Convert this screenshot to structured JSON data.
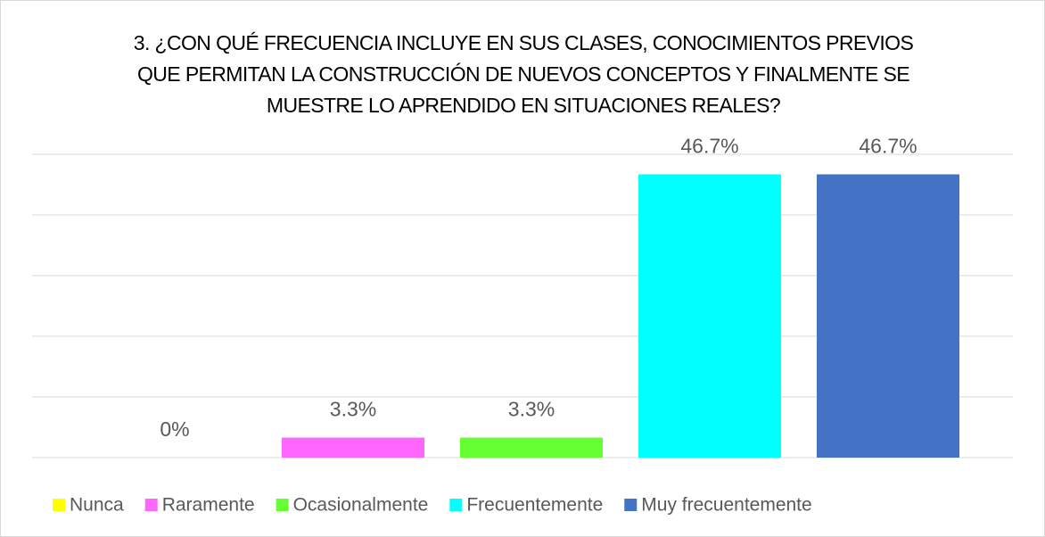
{
  "chart_data": {
    "type": "bar",
    "title": "3. ¿CON QUÉ FRECUENCIA INCLUYE EN SUS CLASES, CONOCIMIENTOS PREVIOS QUE PERMITAN LA CONSTRUCCIÓN DE NUEVOS CONCEPTOS Y FINALMENTE SE MUESTRE LO APRENDIDO EN SITUACIONES REALES?",
    "categories": [
      "Nunca",
      "Raramente",
      "Ocasionalmente",
      "Frecuentemente",
      "Muy frecuentemente"
    ],
    "values": [
      0,
      3.3,
      3.3,
      46.7,
      46.7
    ],
    "value_labels": [
      "0%",
      "3.3%",
      "3.3%",
      "46.7%",
      "46.7%"
    ],
    "colors": [
      "#ffff00",
      "#ff66ff",
      "#66ff33",
      "#00ffff",
      "#4472c4"
    ],
    "ylim": [
      0,
      50
    ],
    "yticks": [
      0,
      10,
      20,
      30,
      40,
      50
    ],
    "grid": true,
    "legend": "bottom"
  }
}
